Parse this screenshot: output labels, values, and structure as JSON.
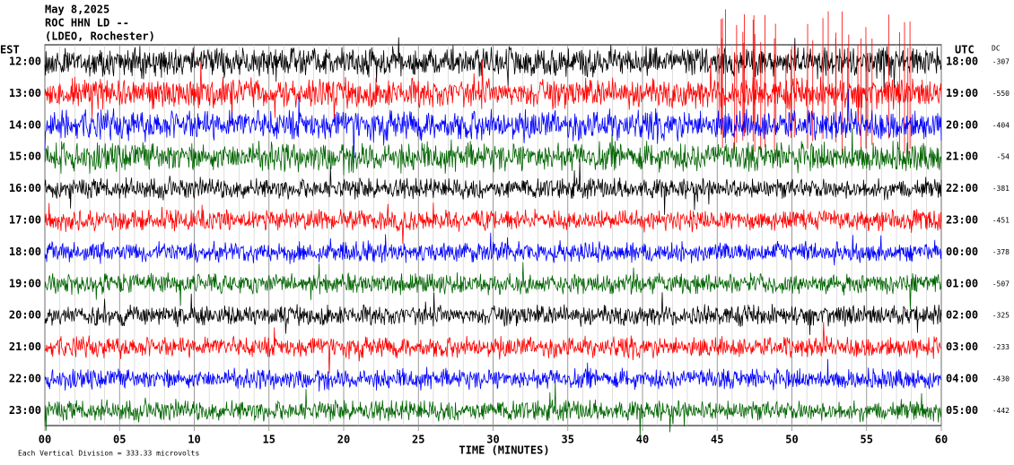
{
  "chart_data": {
    "type": "helicorder",
    "title": "May 8,2025",
    "subtitle": "ROC HHN LD --",
    "station": "(LDEO, Rochester)",
    "left_label": "EST",
    "right_label": "UTC",
    "dc_label": "DC",
    "xlabel": "TIME (MINUTES)",
    "footnote": "Each Vertical Division =  333.33 microvolts",
    "xlim": [
      0,
      60
    ],
    "xticks": [
      {
        "value": 0,
        "label": "00"
      },
      {
        "value": 5,
        "label": "05"
      },
      10,
      15,
      20,
      25,
      30,
      35,
      40,
      45,
      50,
      55,
      60
    ],
    "rows": [
      {
        "est": "12:00",
        "utc": "18:00",
        "dc": -307,
        "color": "#000000"
      },
      {
        "est": "13:00",
        "utc": "19:00",
        "dc": -550,
        "color": "#ff0000"
      },
      {
        "est": "14:00",
        "utc": "20:00",
        "dc": -404,
        "color": "#0000ff"
      },
      {
        "est": "15:00",
        "utc": "21:00",
        "dc": -54,
        "color": "#006400"
      },
      {
        "est": "16:00",
        "utc": "22:00",
        "dc": -381,
        "color": "#000000"
      },
      {
        "est": "17:00",
        "utc": "23:00",
        "dc": -451,
        "color": "#ff0000"
      },
      {
        "est": "18:00",
        "utc": "00:00",
        "dc": -378,
        "color": "#0000ff"
      },
      {
        "est": "19:00",
        "utc": "01:00",
        "dc": -507,
        "color": "#006400"
      },
      {
        "est": "20:00",
        "utc": "02:00",
        "dc": -325,
        "color": "#000000"
      },
      {
        "est": "21:00",
        "utc": "03:00",
        "dc": -233,
        "color": "#ff0000"
      },
      {
        "est": "22:00",
        "utc": "04:00",
        "dc": -430,
        "color": "#0000ff"
      },
      {
        "est": "23:00",
        "utc": "05:00",
        "dc": -442,
        "color": "#006400"
      }
    ]
  }
}
